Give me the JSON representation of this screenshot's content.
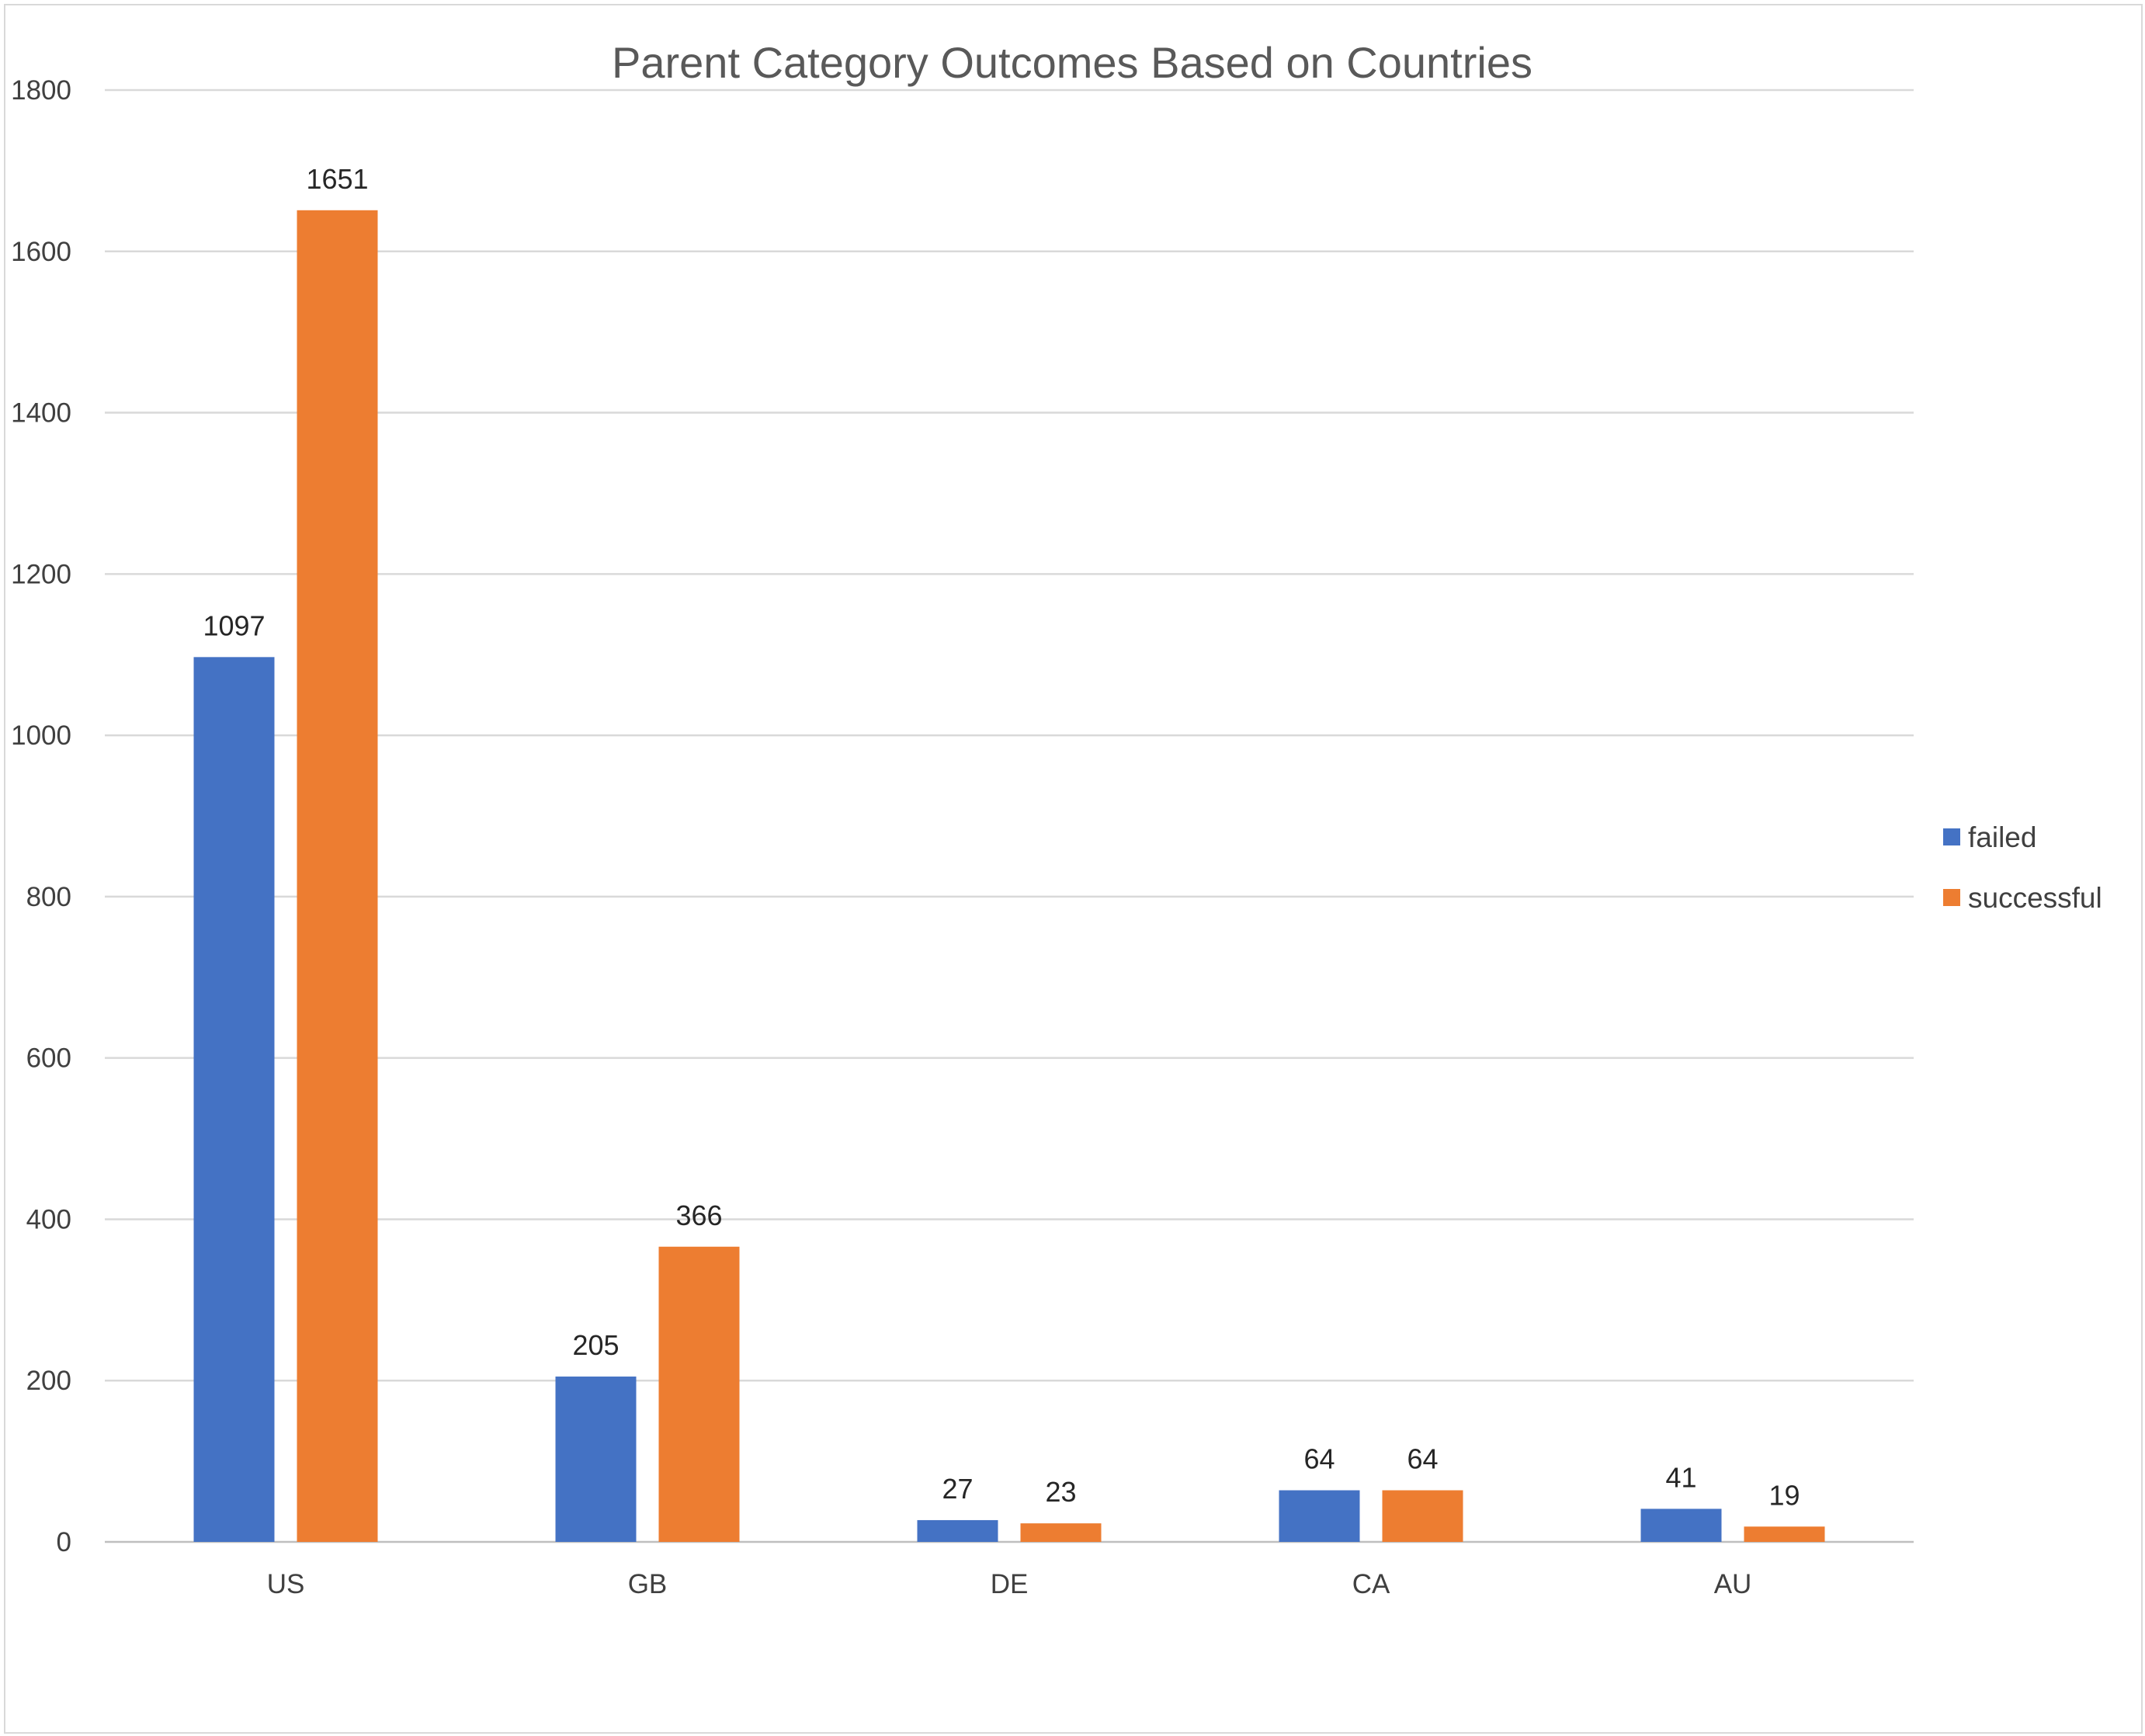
{
  "chart_data": {
    "type": "bar",
    "title": "Parent Category Outcomes Based on Countries",
    "xlabel": "",
    "ylabel": "",
    "categories": [
      "US",
      "GB",
      "DE",
      "CA",
      "AU"
    ],
    "series": [
      {
        "name": "failed",
        "color": "#4472c4",
        "values": [
          1097,
          205,
          27,
          64,
          41
        ]
      },
      {
        "name": "successful",
        "color": "#ed7d31",
        "values": [
          1651,
          366,
          23,
          64,
          19
        ]
      }
    ],
    "ylim": [
      0,
      1800
    ],
    "yticks": [
      0,
      200,
      400,
      600,
      800,
      1000,
      1200,
      1400,
      1600,
      1800
    ],
    "grid": true,
    "data_labels": true,
    "legend_position": "right"
  }
}
